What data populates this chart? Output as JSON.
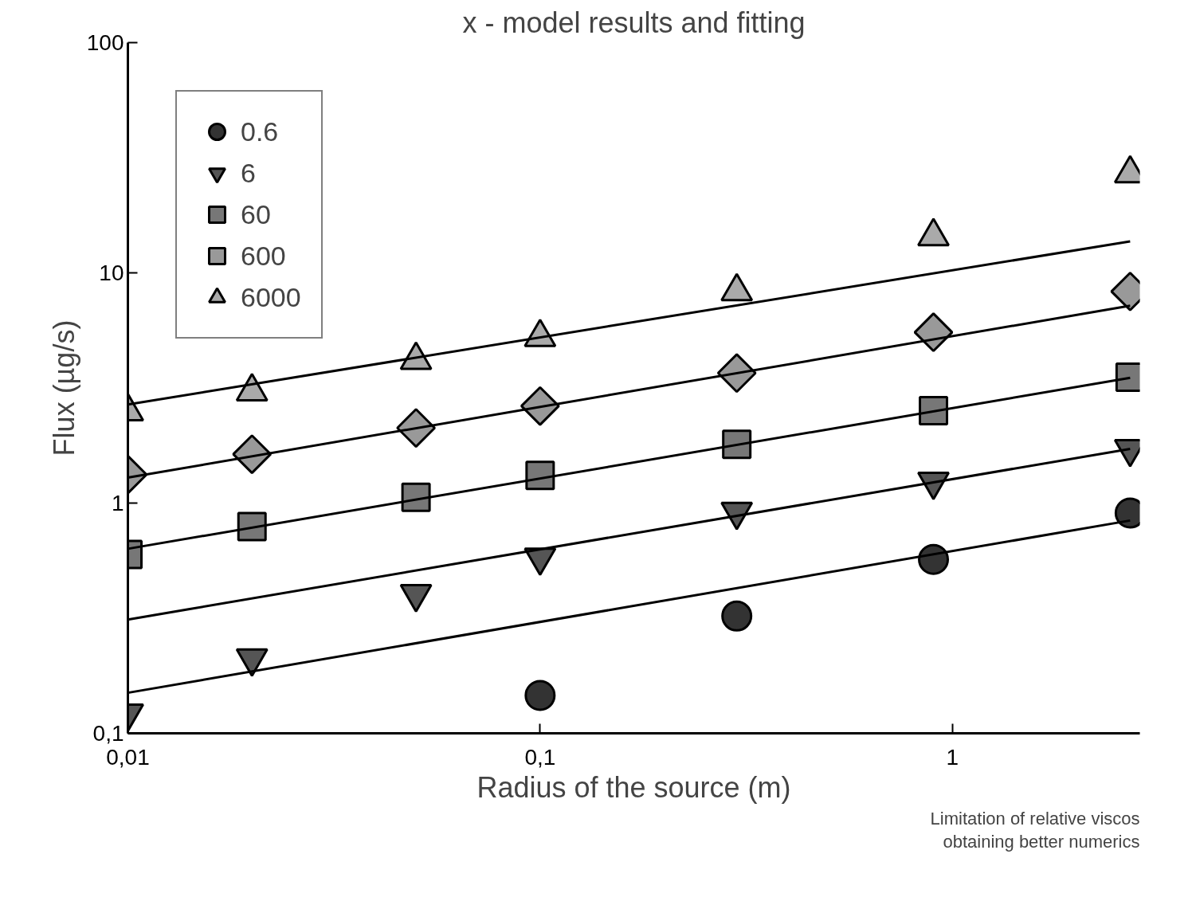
{
  "chart_data": {
    "type": "scatter",
    "title": "x - model results and fitting",
    "xlabel": "Radius of the source (m)",
    "ylabel": "Flux (µg/s)",
    "log": "xy",
    "grid": false,
    "legend": "top left",
    "xlim": [
      0.01,
      2.85
    ],
    "ylim": [
      0.1,
      100
    ],
    "xticks": [
      {
        "value": 0.01,
        "label": "0,01"
      },
      {
        "value": 0.1,
        "label": "0,1"
      },
      1
    ],
    "yticks": [
      {
        "value": 0.1,
        "label": "0,1"
      },
      1,
      10,
      100
    ],
    "x": [
      0.01,
      0.02,
      0.05,
      0.1,
      0.3,
      0.9,
      2.7
    ],
    "series": [
      {
        "name": "0.6",
        "color": "#333333",
        "marker": "circle",
        "x": [
          0.1,
          0.3,
          0.9,
          2.7
        ],
        "values": [
          0.146,
          0.323,
          0.569,
          0.905
        ]
      },
      {
        "name": "6",
        "color": "#555555",
        "marker": "triangle_down",
        "values": [
          0.122,
          0.212,
          0.403,
          0.581,
          0.918,
          1.24,
          1.72
        ]
      },
      {
        "name": "60",
        "color": "#777777",
        "marker": "square",
        "values": [
          0.598,
          0.79,
          1.06,
          1.32,
          1.8,
          2.52,
          3.52
        ]
      },
      {
        "name": "600",
        "color": "#999999",
        "marker": "diamond",
        "values": [
          1.33,
          1.63,
          2.12,
          2.64,
          3.67,
          5.52,
          8.3
        ]
      },
      {
        "name": "6000",
        "color": "#aaaaaa",
        "marker": "triangle",
        "values": [
          2.5,
          3.05,
          4.18,
          5.25,
          8.3,
          14.4,
          27.0
        ]
      },
      {
        "type": "line",
        "color": "#000000",
        "x": [
          0.01,
          2.7
        ],
        "values": [
          0.15,
          0.84
        ]
      },
      {
        "type": "line",
        "color": "#000000",
        "x": [
          0.01,
          2.7
        ],
        "values": [
          0.312,
          1.72
        ]
      },
      {
        "type": "line",
        "color": "#000000",
        "x": [
          0.01,
          2.7
        ],
        "values": [
          0.633,
          3.5
        ]
      },
      {
        "type": "line",
        "color": "#000000",
        "x": [
          0.01,
          2.7
        ],
        "values": [
          1.29,
          7.2
        ]
      },
      {
        "type": "line",
        "color": "#000000",
        "x": [
          0.01,
          2.7
        ],
        "values": [
          2.68,
          13.7
        ]
      }
    ],
    "annotations": [
      "Limitation of relative viscos",
      "obtaining better numerics"
    ]
  }
}
